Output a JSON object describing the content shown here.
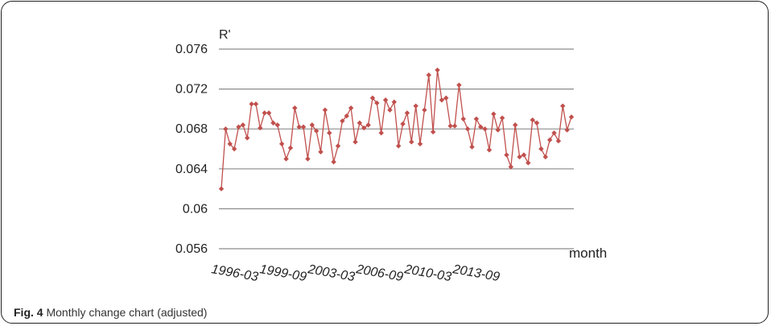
{
  "caption": {
    "label": "Fig. 4",
    "text": "Monthly change chart (adjusted)"
  },
  "chart_data": {
    "type": "line",
    "ylabel": "R'",
    "xlabel": "month",
    "ylim": [
      0.056,
      0.076
    ],
    "yticks": [
      "0.056",
      "0.06",
      "0.064",
      "0.068",
      "0.072",
      "0.076"
    ],
    "xtick_labels": [
      "1996-03",
      "1999-09",
      "2003-03",
      "2006-09",
      "2010-03",
      "2013-09"
    ],
    "grid": "horizontal",
    "color": "#c0504d",
    "series": [
      {
        "values": [
          0.062,
          0.068,
          0.0665,
          0.066,
          0.0682,
          0.0684,
          0.0671,
          0.0705,
          0.0705,
          0.0681,
          0.0696,
          0.0696,
          0.0686,
          0.0684,
          0.0665,
          0.065,
          0.0661,
          0.0701,
          0.0682,
          0.0682,
          0.065,
          0.0684,
          0.0678,
          0.0657,
          0.0699,
          0.0676,
          0.0647,
          0.0663,
          0.0688,
          0.0693,
          0.0701,
          0.0667,
          0.0686,
          0.0681,
          0.0684,
          0.0711,
          0.0706,
          0.0676,
          0.0709,
          0.0699,
          0.0707,
          0.0663,
          0.0685,
          0.0696,
          0.0667,
          0.0703,
          0.0665,
          0.0699,
          0.0734,
          0.0677,
          0.0739,
          0.0709,
          0.0711,
          0.0683,
          0.0683,
          0.0724,
          0.069,
          0.068,
          0.0662,
          0.069,
          0.0682,
          0.068,
          0.0659,
          0.0695,
          0.0679,
          0.0691,
          0.0654,
          0.0642,
          0.0684,
          0.0652,
          0.0654,
          0.0646,
          0.0689,
          0.0686,
          0.066,
          0.0652,
          0.0669,
          0.0676,
          0.0668,
          0.0703,
          0.0679,
          0.0692
        ]
      }
    ]
  }
}
